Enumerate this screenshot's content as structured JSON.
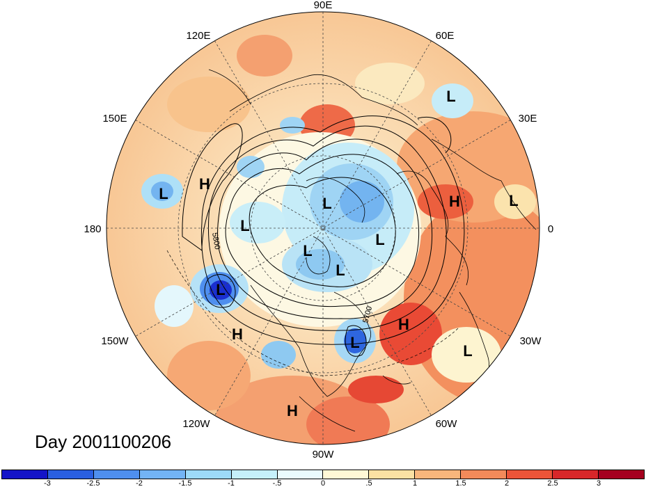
{
  "title": "Day 2001100206",
  "longitude_labels": {
    "lon_90e": "90E",
    "lon_60e": "60E",
    "lon_30e": "30E",
    "lon_0": "0",
    "lon_30w": "30W",
    "lon_60w": "60W",
    "lon_90w": "90W",
    "lon_120w": "120W",
    "lon_150w": "150W",
    "lon_180": "180",
    "lon_150e": "150E",
    "lon_120e": "120E"
  },
  "contour_labels": {
    "c5800": "5800",
    "c5700": "5700"
  },
  "pressure_centers": [
    {
      "type": "L",
      "region": "east-siberia"
    },
    {
      "type": "H",
      "region": "north-pacific-west"
    },
    {
      "type": "L",
      "region": "arctic-east"
    },
    {
      "type": "L",
      "region": "north-pacific"
    },
    {
      "type": "L",
      "region": "central-arctic"
    },
    {
      "type": "L",
      "region": "arctic-greenland"
    },
    {
      "type": "L",
      "region": "canadian-arctic"
    },
    {
      "type": "L",
      "region": "hudson-bay"
    },
    {
      "type": "L",
      "region": "gulf-of-alaska"
    },
    {
      "type": "H",
      "region": "west-coast"
    },
    {
      "type": "H",
      "region": "north-atlantic"
    },
    {
      "type": "L",
      "region": "central-atlantic"
    },
    {
      "type": "H",
      "region": "europe"
    },
    {
      "type": "L",
      "region": "middle-east"
    },
    {
      "type": "L",
      "region": "scandinavia"
    },
    {
      "type": "H",
      "region": "eastern-pacific"
    }
  ],
  "colorbar": {
    "colors": [
      "#1414c8",
      "#2a5fe0",
      "#4f8fee",
      "#73b4f5",
      "#9ddaf9",
      "#c6f0fb",
      "#eafbfd",
      "#fff8d6",
      "#fbe1a3",
      "#f8b67c",
      "#f38a5a",
      "#ec5438",
      "#d8272a",
      "#a5001f"
    ],
    "labels": [
      "-3",
      "-2.5",
      "-2",
      "-1.5",
      "-1",
      "-.5",
      "0",
      ".5",
      "1",
      "1.5",
      "2",
      "2.5",
      "3"
    ]
  }
}
